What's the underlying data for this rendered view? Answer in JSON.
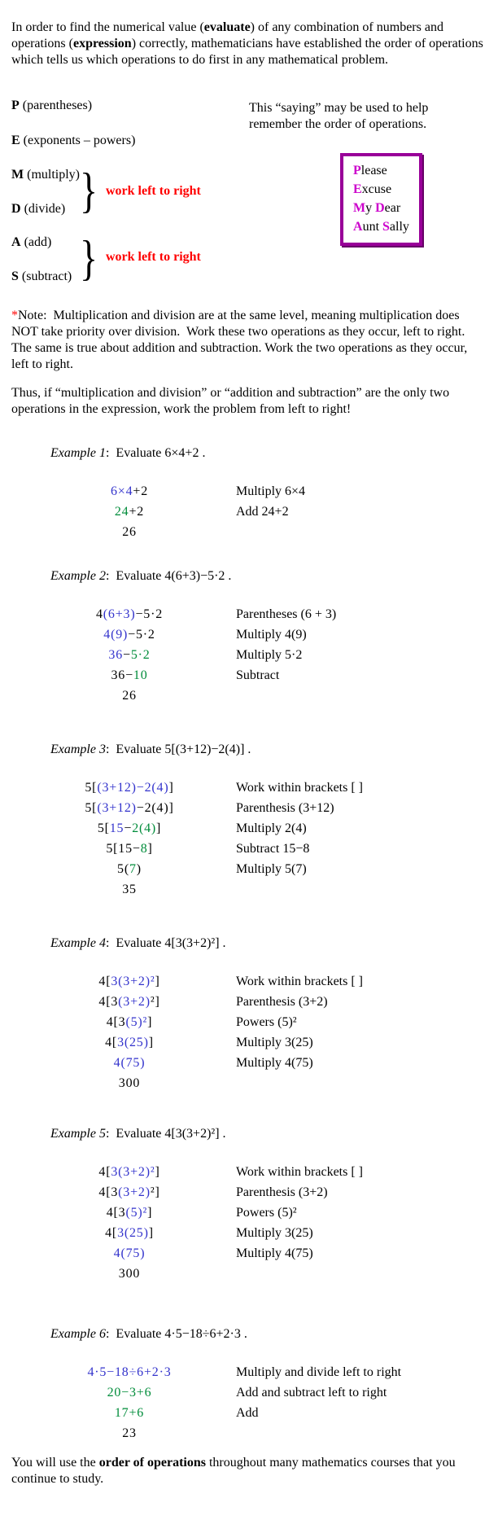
{
  "colors": {
    "math_step_blue": "#3333CC",
    "math_step_green": "#008C3A",
    "work_note_red": "#FF0000",
    "mnemonic_letter_magenta": "#CC00CC",
    "mnemonic_border_purple": "#990099"
  },
  "intro": {
    "p1": "In order to find the numerical value (",
    "b1": "evaluate",
    "p2": ") of any combination of numbers and operations (",
    "b2": "expression",
    "p3": ") correctly, mathematicians have established the order of operations which tells us which operations to do first in any mathematical problem."
  },
  "pemdas": {
    "items": [
      {
        "letter": "P",
        "rest": " (parentheses)"
      },
      {
        "letter": "E",
        "rest": " (exponents – powers)"
      },
      {
        "letter": "M",
        "rest": " (multiply)"
      },
      {
        "letter": "D",
        "rest": " (divide)"
      },
      {
        "letter": "A",
        "rest": " (add)"
      },
      {
        "letter": "S",
        "rest": " (subtract)"
      }
    ],
    "work_note": "work left to right"
  },
  "saying": {
    "text": "This “saying” may be used to help remember the order of operations."
  },
  "mnemonic": {
    "lines": [
      [
        [
          "P",
          1
        ],
        [
          "lease",
          0
        ]
      ],
      [
        [
          "E",
          1
        ],
        [
          "xcuse",
          0
        ]
      ],
      [
        [
          "M",
          1
        ],
        [
          "y ",
          0
        ],
        [
          "D",
          1
        ],
        [
          "ear",
          0
        ]
      ],
      [
        [
          "A",
          1
        ],
        [
          "unt ",
          0
        ],
        [
          "S",
          1
        ],
        [
          "ally",
          0
        ]
      ]
    ]
  },
  "note": {
    "star": "*",
    "body": "Note:  Multiplication and division are at the same level, meaning multiplication does NOT take priority over division.  Work these two operations as they occur, left to right. The same is true about addition and subtraction. Work the two operations as they occur, left to right."
  },
  "thus": {
    "text": "Thus, if “multiplication and division” or “addition and subtraction” are the only two operations in the expression, work the problem from left to right!"
  },
  "examples": [
    {
      "label": "Example 1",
      "prompt": ":  Evaluate 6×4+2 .",
      "steps": [
        {
          "math": [
            [
              "6×4",
              "b"
            ],
            [
              "+2",
              "k"
            ]
          ],
          "desc": "Multiply 6×4"
        },
        {
          "math": [
            [
              "24",
              "g"
            ],
            [
              "+2",
              "k"
            ]
          ],
          "desc": "Add 24+2"
        },
        {
          "math": [
            [
              "26",
              "k"
            ]
          ],
          "desc": ""
        }
      ]
    },
    {
      "label": "Example 2",
      "prompt": ":  Evaluate 4(6+3)−5·2 .",
      "steps": [
        {
          "math": [
            [
              "4",
              "k"
            ],
            [
              "(6+3)",
              "b"
            ],
            [
              "−5·2",
              "k"
            ]
          ],
          "desc": "Parentheses (6 + 3)"
        },
        {
          "math": [
            [
              "4(9)",
              "b"
            ],
            [
              "−5·2",
              "k"
            ]
          ],
          "desc": "Multiply 4(9)"
        },
        {
          "math": [
            [
              "36",
              "b"
            ],
            [
              "−",
              "k"
            ],
            [
              "5·2",
              "g"
            ]
          ],
          "desc": "Multiply 5·2"
        },
        {
          "math": [
            [
              "36−",
              "k"
            ],
            [
              "10",
              "g"
            ]
          ],
          "desc": "Subtract"
        },
        {
          "math": [
            [
              "26",
              "k"
            ]
          ],
          "desc": ""
        }
      ]
    },
    {
      "label": "Example 3",
      "prompt": ":  Evaluate 5[(3+12)−2(4)] .",
      "steps": [
        {
          "math": [
            [
              "5[",
              "k"
            ],
            [
              "(3+12)−2(4)",
              "b"
            ],
            [
              "]",
              "k"
            ]
          ],
          "desc": "Work within brackets [ ]"
        },
        {
          "math": [
            [
              "5[",
              "k"
            ],
            [
              "(3+12)",
              "b"
            ],
            [
              "−2(4)]",
              "k"
            ]
          ],
          "desc": "Parenthesis (3+12)"
        },
        {
          "math": [
            [
              "5[",
              "k"
            ],
            [
              "15",
              "b"
            ],
            [
              "−",
              "k"
            ],
            [
              "2(4)",
              "g"
            ],
            [
              "]",
              "k"
            ]
          ],
          "desc": "Multiply 2(4)"
        },
        {
          "math": [
            [
              "5[15−",
              "k"
            ],
            [
              "8",
              "g"
            ],
            [
              "]",
              "k"
            ]
          ],
          "desc": "Subtract 15−8"
        },
        {
          "math": [
            [
              "5(",
              "k"
            ],
            [
              "7",
              "g"
            ],
            [
              ")",
              "k"
            ]
          ],
          "desc": "Multiply 5(7)"
        },
        {
          "math": [
            [
              "35",
              "k"
            ]
          ],
          "desc": ""
        }
      ]
    },
    {
      "label": "Example 4",
      "prompt": ":  Evaluate 4[3(3+2)²] .",
      "steps": [
        {
          "math": [
            [
              "4[",
              "k"
            ],
            [
              "3(3+2)²",
              "b"
            ],
            [
              "]",
              "k"
            ]
          ],
          "desc": "Work within brackets [ ]"
        },
        {
          "math": [
            [
              "4[3",
              "k"
            ],
            [
              "(3+2)",
              "b"
            ],
            [
              "²]",
              "k"
            ]
          ],
          "desc": "Parenthesis (3+2)"
        },
        {
          "math": [
            [
              "4[3",
              "k"
            ],
            [
              "(5)²",
              "b"
            ],
            [
              "]",
              "k"
            ]
          ],
          "desc": "Powers (5)²"
        },
        {
          "math": [
            [
              "4[",
              "k"
            ],
            [
              "3(25)",
              "b"
            ],
            [
              "]",
              "k"
            ]
          ],
          "desc": "Multiply 3(25)"
        },
        {
          "math": [
            [
              "4(75)",
              "b"
            ]
          ],
          "desc": "Multiply 4(75)"
        },
        {
          "math": [
            [
              "300",
              "k"
            ]
          ],
          "desc": ""
        }
      ]
    },
    {
      "label": "Example 5",
      "prompt": ":  Evaluate 4[3(3+2)²] .",
      "steps": [
        {
          "math": [
            [
              "4[",
              "k"
            ],
            [
              "3(3+2)²",
              "b"
            ],
            [
              "]",
              "k"
            ]
          ],
          "desc": "Work within brackets [ ]"
        },
        {
          "math": [
            [
              "4[3",
              "k"
            ],
            [
              "(3+2)",
              "b"
            ],
            [
              "²]",
              "k"
            ]
          ],
          "desc": "Parenthesis (3+2)"
        },
        {
          "math": [
            [
              "4[3",
              "k"
            ],
            [
              "(5)²",
              "b"
            ],
            [
              "]",
              "k"
            ]
          ],
          "desc": "Powers (5)²"
        },
        {
          "math": [
            [
              "4[",
              "k"
            ],
            [
              "3(25)",
              "b"
            ],
            [
              "]",
              "k"
            ]
          ],
          "desc": "Multiply 3(25)"
        },
        {
          "math": [
            [
              "4(75)",
              "b"
            ]
          ],
          "desc": "Multiply 4(75)"
        },
        {
          "math": [
            [
              "300",
              "k"
            ]
          ],
          "desc": ""
        }
      ]
    },
    {
      "label": "Example 6",
      "prompt": ":  Evaluate 4·5−18÷6+2·3 .",
      "steps": [
        {
          "math": [
            [
              "4·5−18÷6+2·3",
              "b"
            ]
          ],
          "desc": "Multiply and divide left to right"
        },
        {
          "math": [
            [
              "20−3+6",
              "g"
            ]
          ],
          "desc": "Add and subtract left to right"
        },
        {
          "math": [
            [
              "17+6",
              "g"
            ]
          ],
          "desc": "Add"
        },
        {
          "math": [
            [
              "23",
              "k"
            ]
          ],
          "desc": ""
        }
      ]
    }
  ],
  "closing": {
    "p1": "You will use the ",
    "b1": "order of operations",
    "p2": " throughout many mathematics courses that you continue to study."
  }
}
